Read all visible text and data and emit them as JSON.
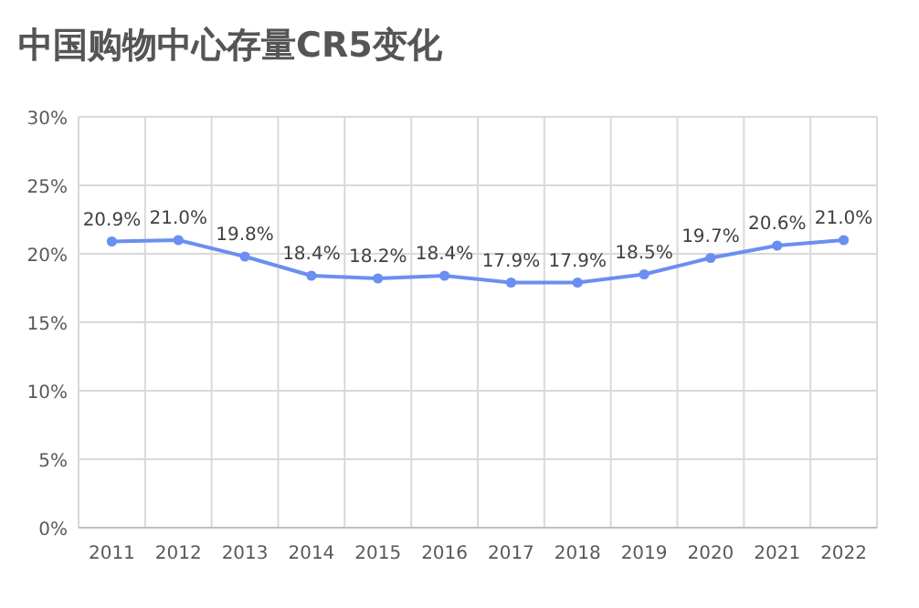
{
  "chart_data": {
    "type": "line",
    "title": "中国购物中心存量CR5变化",
    "categories": [
      "2011",
      "2012",
      "2013",
      "2014",
      "2015",
      "2016",
      "2017",
      "2018",
      "2019",
      "2020",
      "2021",
      "2022"
    ],
    "series": [
      {
        "color": "#6a8ff0",
        "values": [
          20.9,
          21.0,
          19.8,
          18.4,
          18.2,
          18.4,
          17.9,
          17.9,
          18.5,
          19.7,
          20.6,
          21.0
        ],
        "value_labels": [
          "20.9%",
          "21.0%",
          "19.8%",
          "18.4%",
          "18.2%",
          "18.4%",
          "17.9%",
          "17.9%",
          "18.5%",
          "19.7%",
          "20.6%",
          "21.0%"
        ]
      }
    ],
    "ylim": [
      0,
      30
    ],
    "yticks": [
      {
        "value": 0,
        "label": "0%"
      },
      {
        "value": 5,
        "label": "5%"
      },
      {
        "value": 10,
        "label": "10%"
      },
      {
        "value": 15,
        "label": "15%"
      },
      {
        "value": 20,
        "label": "20%"
      },
      {
        "value": 25,
        "label": "25%"
      },
      {
        "value": 30,
        "label": "30%"
      }
    ],
    "grid": true,
    "marker": "circle",
    "line_style": "solid"
  }
}
